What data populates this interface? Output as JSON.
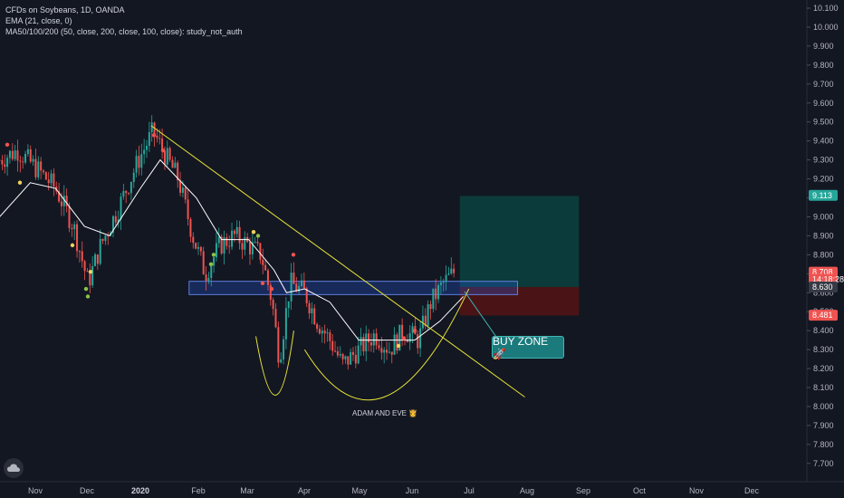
{
  "legend": {
    "line1": "CFDs on Soybeans, 1D, OANDA",
    "line2": "EMA (21, close, 0)",
    "line3": "MA50/100/200 (50, close, 200, close, 100, close): study_not_auth"
  },
  "annotations": {
    "pattern_label": "ADAM AND EVE 👸",
    "buy_zone": "BUY ZONE 🚀"
  },
  "colors": {
    "background": "#131722",
    "up": "#26a69a",
    "down": "#ef5350",
    "trendline": "#e8e33a",
    "ema": "#ffffff",
    "zone": "#2962ff",
    "target": "#0b3b3a",
    "stop": "#4a1416"
  },
  "chart_data": {
    "type": "candlestick",
    "title": "CFDs on Soybeans, 1D, OANDA",
    "y_ticks": [
      "10.100",
      "10.000",
      "9.900",
      "9.800",
      "9.700",
      "9.600",
      "9.500",
      "9.400",
      "9.300",
      "9.200",
      "9.100",
      "9.000",
      "8.900",
      "8.800",
      "8.700",
      "8.600",
      "8.500",
      "8.400",
      "8.300",
      "8.200",
      "8.100",
      "8.000",
      "7.900",
      "7.800",
      "7.700"
    ],
    "x_ticks": [
      {
        "label": "Nov"
      },
      {
        "label": "Dec"
      },
      {
        "label": "2020",
        "bold": true
      },
      {
        "label": "Feb"
      },
      {
        "label": "Mar"
      },
      {
        "label": "Apr"
      },
      {
        "label": "May"
      },
      {
        "label": "Jun"
      },
      {
        "label": "Jul"
      },
      {
        "label": "Aug"
      },
      {
        "label": "Sep"
      },
      {
        "label": "Oct"
      },
      {
        "label": "Nov"
      },
      {
        "label": "Dec"
      }
    ],
    "ylim": [
      7.65,
      10.13
    ],
    "price_tags": [
      {
        "label": "9.113",
        "value": 9.113,
        "color": "#26a69a"
      },
      {
        "label": "8.708",
        "value": 8.708,
        "color": "#ef5350"
      },
      {
        "label": "14:18:28",
        "value": 8.67,
        "color": "#ef5350"
      },
      {
        "label": "8.630",
        "value": 8.63,
        "color": "#363a45"
      },
      {
        "label": "8.481",
        "value": 8.481,
        "color": "#ef5350"
      }
    ],
    "close_path": [
      {
        "x": "Oct 15",
        "y": 9.3
      },
      {
        "x": "Oct 25",
        "y": 9.35
      },
      {
        "x": "Nov 5",
        "y": 9.25
      },
      {
        "x": "Nov 15",
        "y": 9.15
      },
      {
        "x": "Nov 25",
        "y": 8.95
      },
      {
        "x": "Dec 3",
        "y": 8.65
      },
      {
        "x": "Dec 10",
        "y": 8.85
      },
      {
        "x": "Dec 20",
        "y": 9.05
      },
      {
        "x": "Dec 31",
        "y": 9.3
      },
      {
        "x": "Jan 8",
        "y": 9.45
      },
      {
        "x": "Jan 15",
        "y": 9.32
      },
      {
        "x": "Jan 22",
        "y": 9.2
      },
      {
        "x": "Jan 30",
        "y": 8.9
      },
      {
        "x": "Feb 6",
        "y": 8.7
      },
      {
        "x": "Feb 14",
        "y": 8.85
      },
      {
        "x": "Feb 22",
        "y": 8.9
      },
      {
        "x": "Mar 1",
        "y": 8.85
      },
      {
        "x": "Mar 8",
        "y": 8.8
      },
      {
        "x": "Mar 14",
        "y": 8.55
      },
      {
        "x": "Mar 18",
        "y": 8.25
      },
      {
        "x": "Mar 24",
        "y": 8.65
      },
      {
        "x": "Apr 1",
        "y": 8.6
      },
      {
        "x": "Apr 8",
        "y": 8.45
      },
      {
        "x": "Apr 15",
        "y": 8.35
      },
      {
        "x": "Apr 22",
        "y": 8.22
      },
      {
        "x": "May 1",
        "y": 8.3
      },
      {
        "x": "May 10",
        "y": 8.38
      },
      {
        "x": "May 18",
        "y": 8.3
      },
      {
        "x": "May 26",
        "y": 8.4
      },
      {
        "x": "Jun 3",
        "y": 8.35
      },
      {
        "x": "Jun 10",
        "y": 8.55
      },
      {
        "x": "Jun 17",
        "y": 8.65
      },
      {
        "x": "Jun 24",
        "y": 8.72
      }
    ],
    "ema_path": [
      {
        "x": "Oct 15",
        "y": 9.0
      },
      {
        "x": "Nov 1",
        "y": 9.18
      },
      {
        "x": "Nov 15",
        "y": 9.15
      },
      {
        "x": "Dec 1",
        "y": 8.95
      },
      {
        "x": "Dec 15",
        "y": 8.9
      },
      {
        "x": "Jan 1",
        "y": 9.15
      },
      {
        "x": "Jan 12",
        "y": 9.3
      },
      {
        "x": "Feb 1",
        "y": 9.1
      },
      {
        "x": "Feb 15",
        "y": 8.88
      },
      {
        "x": "Mar 1",
        "y": 8.88
      },
      {
        "x": "Mar 15",
        "y": 8.72
      },
      {
        "x": "Mar 22",
        "y": 8.6
      },
      {
        "x": "Apr 1",
        "y": 8.62
      },
      {
        "x": "Apr 15",
        "y": 8.55
      },
      {
        "x": "May 1",
        "y": 8.35
      },
      {
        "x": "May 15",
        "y": 8.35
      },
      {
        "x": "Jun 1",
        "y": 8.35
      },
      {
        "x": "Jun 15",
        "y": 8.45
      },
      {
        "x": "Jun 28",
        "y": 8.58
      }
    ],
    "trendline": [
      {
        "x": "Jan 7",
        "y": 9.48
      },
      {
        "x": "Aug 1",
        "y": 8.05
      }
    ],
    "support_zone": {
      "from": "Jan 28",
      "to": "Jul 28",
      "y_low": 8.59,
      "y_high": 8.66
    },
    "target_box": {
      "from": "Jun 26",
      "to": "Aug 31",
      "y_low": 8.63,
      "y_high": 9.11
    },
    "stop_box": {
      "from": "Jun 26",
      "to": "Aug 31",
      "y_low": 8.48,
      "y_high": 8.63
    },
    "adam_curve": [
      {
        "x": "Mar 5",
        "y": 8.37
      },
      {
        "x": "Mar 16",
        "y": 8.06
      },
      {
        "x": "Mar 26",
        "y": 8.4
      }
    ],
    "eve_curve": [
      {
        "x": "Apr 1",
        "y": 8.3
      },
      {
        "x": "May 15",
        "y": 8.05
      },
      {
        "x": "Jul 1",
        "y": 8.62
      }
    ]
  }
}
